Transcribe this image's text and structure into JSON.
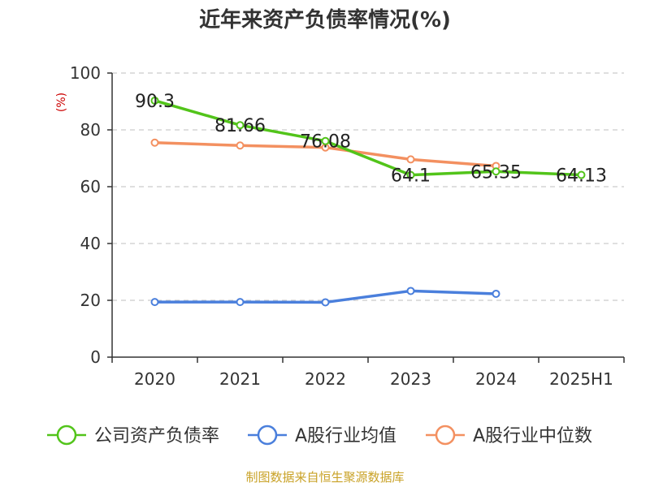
{
  "chart_data": {
    "type": "line",
    "title": "近年来资产负债率情况(%)",
    "ylabel": "(%)",
    "xlabel": "",
    "categories": [
      "2020",
      "2021",
      "2022",
      "2023",
      "2024",
      "2025H1"
    ],
    "ylim": [
      0,
      100
    ],
    "yticks": [
      0,
      20,
      40,
      60,
      80,
      100
    ],
    "grid": true,
    "legend_position": "bottom",
    "series": [
      {
        "name": "公司资产负债率",
        "color": "#52c41a",
        "values": [
          90.3,
          81.66,
          76.08,
          64.1,
          65.35,
          64.13
        ],
        "labels": [
          "90.3",
          "81.66",
          "76.08",
          "64.1",
          "65.35",
          "64.13"
        ]
      },
      {
        "name": "A股行业均值",
        "color": "#4a7fdc",
        "values": [
          19.4,
          19.4,
          19.3,
          23.3,
          22.3,
          null
        ]
      },
      {
        "name": "A股行业中位数",
        "color": "#f39060",
        "values": [
          75.5,
          74.5,
          73.8,
          69.6,
          67.3,
          null
        ]
      }
    ]
  },
  "source": "制图数据来自恒生聚源数据库",
  "colors": {
    "axis": "#333333",
    "grid": "#cccccc",
    "ylabel": "#cc0000",
    "source": "#c9a227"
  }
}
